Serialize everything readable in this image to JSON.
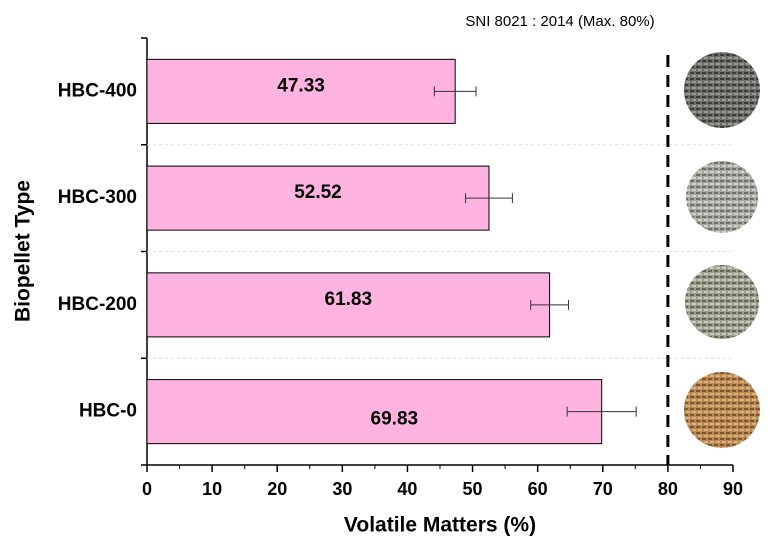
{
  "chart_data": {
    "type": "bar",
    "orientation": "horizontal",
    "xlabel": "Volatile Matters (%)",
    "ylabel": "Biopellet Type",
    "annotation": "SNI 8021 : 2014 (Max. 80%)",
    "reference_line": 80,
    "categories": [
      "HBC-400",
      "HBC-300",
      "HBC-200",
      "HBC-0"
    ],
    "values": [
      47.33,
      52.52,
      61.83,
      69.83
    ],
    "errors": [
      3.2,
      3.6,
      2.9,
      5.3
    ],
    "color": "#ffb3e0",
    "xlim": [
      0,
      90
    ],
    "xticks": [
      0,
      10,
      20,
      30,
      40,
      50,
      60,
      70,
      80,
      90
    ]
  }
}
